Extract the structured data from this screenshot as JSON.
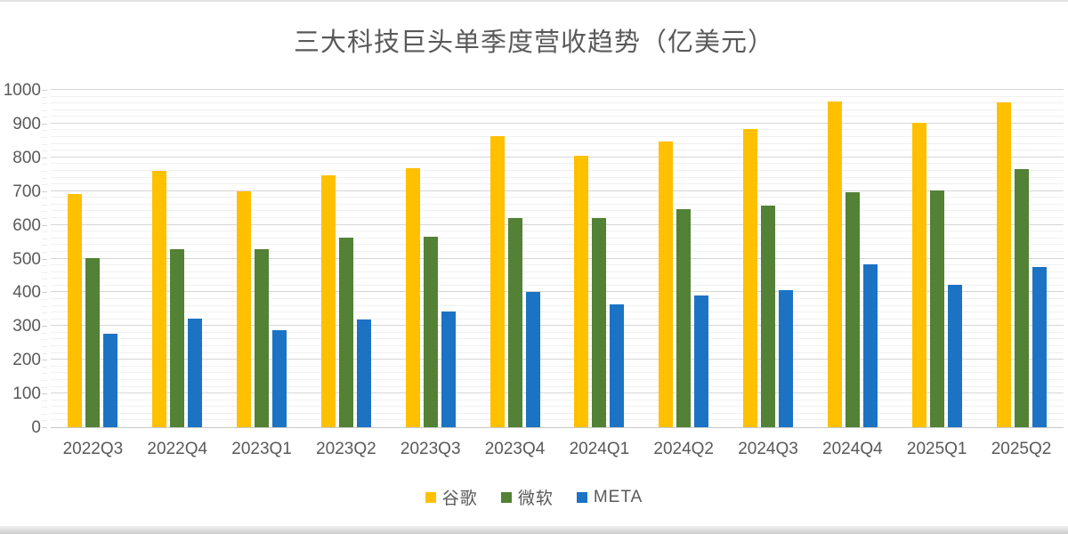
{
  "chart_data": {
    "type": "bar",
    "title": "三大科技巨头单季度营收趋势（亿美元）",
    "categories": [
      "2022Q3",
      "2022Q4",
      "2023Q1",
      "2023Q2",
      "2023Q3",
      "2023Q4",
      "2024Q1",
      "2024Q2",
      "2024Q3",
      "2024Q4",
      "2025Q1",
      "2025Q2"
    ],
    "series": [
      {
        "key": "google",
        "name": "谷歌",
        "color": "#FFC000",
        "values": [
          691,
          761,
          698,
          746,
          767,
          863,
          805,
          847,
          883,
          965,
          902,
          964
        ]
      },
      {
        "key": "microsoft",
        "name": "微软",
        "color": "#538135",
        "values": [
          501,
          527,
          529,
          562,
          565,
          620,
          619,
          647,
          656,
          696,
          701,
          764
        ]
      },
      {
        "key": "meta",
        "name": "META",
        "color": "#1C73C4",
        "values": [
          277,
          322,
          287,
          320,
          342,
          401,
          365,
          391,
          406,
          484,
          423,
          475
        ]
      }
    ],
    "xlabel": "",
    "ylabel": "",
    "ylim": [
      0,
      1000
    ],
    "y_major_step": 100,
    "y_minor_step": 20,
    "y_tick_labels": [
      "0",
      "100",
      "200",
      "300",
      "400",
      "500",
      "600",
      "700",
      "800",
      "900",
      "1000"
    ],
    "grid": true,
    "legend_position": "bottom",
    "text_color": "#595959"
  }
}
